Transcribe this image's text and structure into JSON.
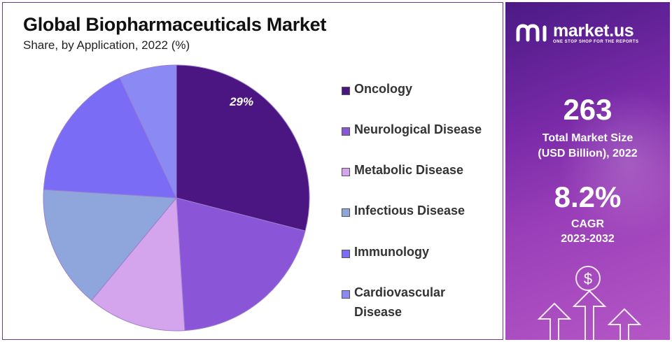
{
  "header": {
    "title": "Global Biopharmaceuticals Market",
    "subtitle": "Share, by Application, 2022 (%)"
  },
  "chart_data": {
    "type": "pie",
    "title": "Global Biopharmaceuticals Market",
    "subtitle": "Share, by Application, 2022 (%)",
    "categories": [
      "Oncology",
      "Neurological Disease",
      "Metabolic Disease",
      "Infectious Disease",
      "Immunology",
      "Cardiovascular Disease"
    ],
    "values": [
      29,
      20,
      12,
      15,
      17,
      7
    ],
    "colors": [
      "#4b1582",
      "#8a55d6",
      "#d4a5ec",
      "#8ea6dc",
      "#7b6cf5",
      "#8b8af5"
    ],
    "data_labels": [
      "29%",
      "",
      "",
      "",
      "",
      ""
    ],
    "legend_position": "right"
  },
  "legend": {
    "items": [
      {
        "label": "Oncology"
      },
      {
        "label": "Neurological Disease"
      },
      {
        "label": "Metabolic Disease"
      },
      {
        "label": "Infectious Disease"
      },
      {
        "label": "Immunology"
      },
      {
        "label": "Cardiovascular Disease"
      }
    ]
  },
  "brand": {
    "name": "market.us",
    "tagline": "ONE STOP SHOP FOR THE REPORTS"
  },
  "stats": {
    "market_size_value": "263",
    "market_size_label_1": "Total Market Size",
    "market_size_label_2": "(USD Billion), 2022",
    "cagr_value": "8.2%",
    "cagr_label_1": "CAGR",
    "cagr_label_2": "2023-2032"
  },
  "icons": [
    "dollar-icon",
    "growth-arrows-icon"
  ]
}
